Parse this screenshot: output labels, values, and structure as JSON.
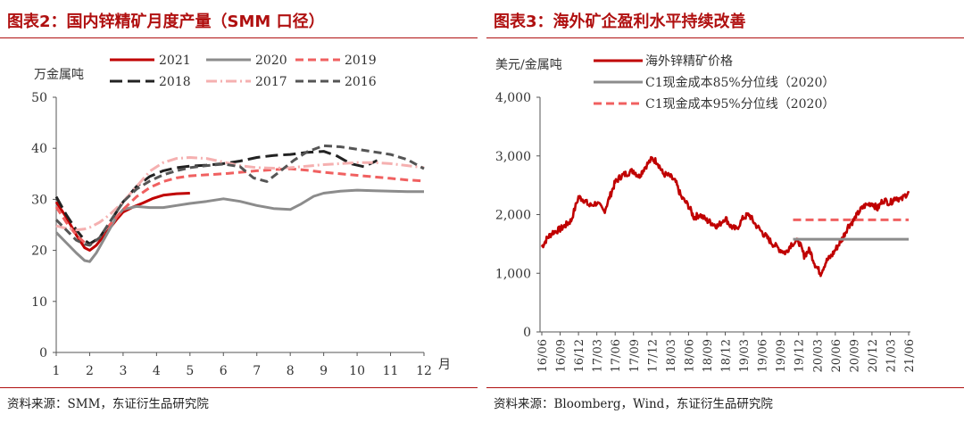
{
  "left": {
    "title": "图表2：国内锌精矿月度产量（SMM 口径）",
    "source": "资料来源：SMM，东证衍生品研究院",
    "chart_data": {
      "type": "line",
      "ylabel": "万金属吨",
      "xlabel": "月",
      "ylim": [
        0,
        50
      ],
      "xlim": [
        1,
        12
      ],
      "yticks": [
        "0",
        "10",
        "20",
        "30",
        "40",
        "50"
      ],
      "xticks": [
        "1",
        "2",
        "3",
        "4",
        "5",
        "6",
        "7",
        "8",
        "9",
        "10",
        "11",
        "12"
      ],
      "legend_position": "top",
      "grid": false,
      "series": [
        {
          "name": "2021",
          "color": "#c00000",
          "dash": "solid",
          "x": [
            1,
            1.3,
            1.6,
            1.85,
            2,
            2.2,
            2.5,
            2.8,
            3,
            3.3,
            3.6,
            3.9,
            4.2,
            4.6,
            5
          ],
          "y": [
            29.5,
            26.5,
            23,
            20.5,
            20,
            21,
            23.5,
            26,
            27.5,
            28.5,
            29.3,
            30.2,
            30.8,
            31.1,
            31.2
          ]
        },
        {
          "name": "2020",
          "color": "#8c8c8c",
          "dash": "solid",
          "x": [
            1,
            1.3,
            1.6,
            1.85,
            2,
            2.2,
            2.5,
            2.8,
            3,
            3.4,
            3.8,
            4.2,
            4.6,
            5,
            5.5,
            6,
            6.5,
            7,
            7.5,
            8,
            8.3,
            8.7,
            9,
            9.5,
            10,
            10.5,
            11,
            11.5,
            12
          ],
          "y": [
            23.5,
            21.5,
            19.5,
            18,
            17.8,
            19.5,
            23,
            26.5,
            28,
            28.6,
            28.4,
            28.4,
            28.8,
            29.2,
            29.6,
            30.1,
            29.6,
            28.8,
            28.2,
            28,
            29,
            30.6,
            31.2,
            31.6,
            31.8,
            31.7,
            31.6,
            31.5,
            31.5
          ]
        },
        {
          "name": "2019",
          "color": "#f06060",
          "dash": "dash",
          "x": [
            1,
            1.3,
            1.6,
            1.85,
            2,
            2.3,
            2.6,
            3,
            3.4,
            3.8,
            4.2,
            4.6,
            5,
            5.5,
            6,
            6.5,
            7,
            7.5,
            8,
            8.5,
            9,
            9.5,
            10,
            10.5,
            11,
            11.5,
            12
          ],
          "y": [
            28.5,
            25.5,
            23,
            21.5,
            21.2,
            22.5,
            25,
            28,
            30.5,
            32.3,
            33.5,
            34.2,
            34.6,
            34.8,
            35,
            35.3,
            35.6,
            35.8,
            36,
            35.7,
            35.3,
            35,
            34.7,
            34.4,
            34.1,
            33.8,
            33.6
          ]
        },
        {
          "name": "2018",
          "color": "#222222",
          "dash": "longdash",
          "x": [
            1,
            1.3,
            1.6,
            1.85,
            2,
            2.3,
            2.6,
            3,
            3.4,
            3.8,
            4.2,
            4.6,
            5,
            5.5,
            6,
            6.5,
            7,
            7.5,
            8,
            8.5,
            9,
            9.4,
            9.8,
            10.2,
            10.6
          ],
          "y": [
            30.5,
            27,
            24,
            22,
            21.3,
            22.5,
            25.5,
            29.5,
            32.5,
            34.5,
            35.6,
            36.2,
            36.5,
            36.7,
            37,
            37.5,
            38.2,
            38.6,
            38.8,
            39.2,
            39.4,
            38.5,
            37,
            36.4,
            37.6
          ]
        },
        {
          "name": "2017",
          "color": "#f5b0b0",
          "dash": "dashdot",
          "x": [
            1,
            1.3,
            1.6,
            1.85,
            2,
            2.3,
            2.6,
            3,
            3.4,
            3.8,
            4.2,
            4.6,
            5,
            5.5,
            6,
            6.5,
            7,
            7.5,
            8,
            8.5,
            9,
            9.5,
            10,
            10.5,
            11,
            11.5,
            12
          ],
          "y": [
            24.8,
            24.3,
            24,
            24.2,
            24.5,
            25.5,
            27,
            29.5,
            32.5,
            35.5,
            37.2,
            38,
            38.2,
            38,
            37.3,
            36.6,
            36.2,
            36.1,
            36.2,
            36.5,
            36.8,
            37,
            37.2,
            37.2,
            37,
            36.6,
            36.2
          ]
        },
        {
          "name": "2016",
          "color": "#555555",
          "dash": "dash",
          "x": [
            1,
            1.3,
            1.6,
            1.85,
            2,
            2.3,
            2.6,
            3,
            3.4,
            3.8,
            4.2,
            4.6,
            5,
            5.5,
            6,
            6.5,
            6.9,
            7.3,
            7.7,
            8.1,
            8.5,
            9,
            9.5,
            10,
            10.5,
            11,
            11.5,
            12
          ],
          "y": [
            26,
            24,
            22,
            21.2,
            21,
            22.5,
            25.5,
            29.5,
            32,
            33.6,
            34.8,
            35.6,
            36.2,
            36.6,
            36.9,
            36.4,
            34.2,
            33.5,
            35.5,
            37.6,
            39.3,
            40.5,
            40.3,
            39.8,
            39.3,
            38.8,
            37.8,
            36
          ]
        }
      ]
    }
  },
  "right": {
    "title": "图表3：海外矿企盈利水平持续改善",
    "source": "资料来源：Bloomberg，Wind，东证衍生品研究院",
    "chart_data": {
      "type": "line",
      "ylabel": "美元/金属吨",
      "ylim": [
        0,
        4000
      ],
      "yticks": [
        "0",
        "1,000",
        "2,000",
        "3,000",
        "4,000"
      ],
      "xticks": [
        "16/06",
        "16/09",
        "16/12",
        "17/03",
        "17/06",
        "17/09",
        "17/12",
        "18/03",
        "18/06",
        "18/09",
        "18/12",
        "19/03",
        "19/06",
        "19/09",
        "19/12",
        "20/03",
        "20/06",
        "20/09",
        "20/12",
        "21/03",
        "21/06"
      ],
      "legend_position": "top",
      "grid": false,
      "series": [
        {
          "name": "海外锌精矿价格",
          "color": "#c00000",
          "dash": "solid",
          "x": [
            0,
            0.3,
            0.6,
            1,
            1.3,
            1.6,
            2,
            2.3,
            2.6,
            3,
            3.4,
            3.7,
            4,
            4.3,
            4.6,
            5,
            5.3,
            5.6,
            6,
            6.3,
            6.6,
            7,
            7.3,
            7.6,
            8,
            8.3,
            8.6,
            9,
            9.3,
            9.6,
            10,
            10.3,
            10.6,
            11,
            11.3,
            11.6,
            12,
            12.3,
            12.6,
            13,
            13.3,
            13.6,
            14,
            14.3,
            14.6,
            14.9,
            15.2,
            15.5,
            15.8,
            16.1,
            16.4,
            16.7,
            17,
            17.3,
            17.6,
            18,
            18.3,
            18.6,
            19,
            19.3,
            19.6,
            20
          ],
          "y": [
            1450,
            1600,
            1700,
            1750,
            1820,
            1900,
            2300,
            2250,
            2150,
            2200,
            2050,
            2300,
            2550,
            2650,
            2700,
            2750,
            2650,
            2800,
            2950,
            2900,
            2700,
            2650,
            2550,
            2300,
            2150,
            1950,
            2000,
            1900,
            1850,
            1800,
            1950,
            1800,
            1750,
            1950,
            2000,
            1850,
            1700,
            1600,
            1500,
            1400,
            1350,
            1500,
            1550,
            1300,
            1400,
            1150,
            1000,
            1200,
            1300,
            1450,
            1600,
            1800,
            1900,
            2050,
            2150,
            2200,
            2100,
            2250,
            2200,
            2300,
            2250,
            2400
          ]
        },
        {
          "name": "C1现金成本85%分位线（2020）",
          "color": "#8c8c8c",
          "dash": "solid",
          "x": [
            13.7,
            20
          ],
          "y": [
            1580,
            1580
          ]
        },
        {
          "name": "C1现金成本95%分位线（2020）",
          "color": "#f06060",
          "dash": "dash",
          "x": [
            13.7,
            20
          ],
          "y": [
            1910,
            1910
          ]
        }
      ]
    }
  }
}
